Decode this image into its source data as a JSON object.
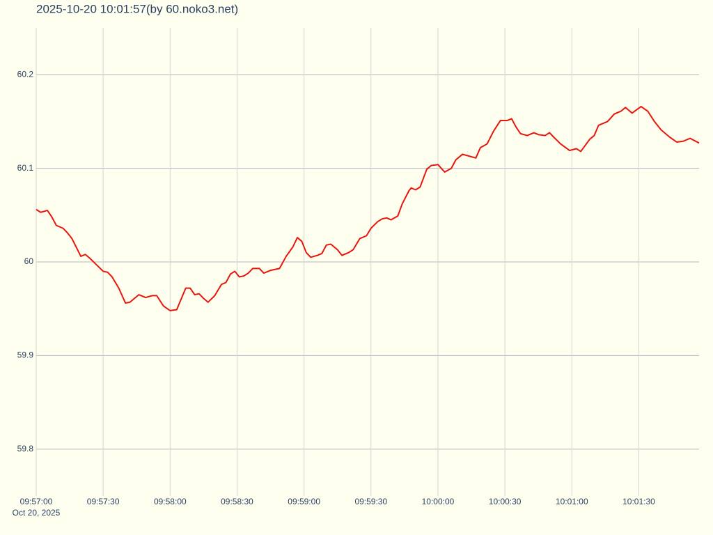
{
  "chart_data": {
    "type": "line",
    "title": "2025-10-20 10:01:57(by 60.noko3.net)",
    "x_date_label": "Oct 20, 2025",
    "color": "#e8150d",
    "grid": true,
    "xlim": [
      "09:57:00",
      "10:01:57"
    ],
    "xticks": [
      "09:57:00",
      "09:57:30",
      "09:58:00",
      "09:58:30",
      "09:59:00",
      "09:59:30",
      "10:00:00",
      "10:00:30",
      "10:01:00",
      "10:01:30"
    ],
    "ylim": [
      59.75,
      60.25
    ],
    "yticks": [
      59.8,
      59.9,
      60,
      60.1,
      60.2
    ],
    "x": [
      "09:57:00",
      "09:57:02",
      "09:57:05",
      "09:57:07",
      "09:57:09",
      "09:57:12",
      "09:57:14",
      "09:57:16",
      "09:57:20",
      "09:57:22",
      "09:57:24",
      "09:57:27",
      "09:57:30",
      "09:57:32",
      "09:57:34",
      "09:57:37",
      "09:57:40",
      "09:57:42",
      "09:57:44",
      "09:57:46",
      "09:57:49",
      "09:57:52",
      "09:57:54",
      "09:57:57",
      "09:58:00",
      "09:58:03",
      "09:58:04",
      "09:58:07",
      "09:58:09",
      "09:58:11",
      "09:58:13",
      "09:58:15",
      "09:58:17",
      "09:58:20",
      "09:58:23",
      "09:58:25",
      "09:58:27",
      "09:58:29",
      "09:58:31",
      "09:58:33",
      "09:58:35",
      "09:58:37",
      "09:58:40",
      "09:58:42",
      "09:58:45",
      "09:58:49",
      "09:58:52",
      "09:58:55",
      "09:58:57",
      "09:58:59",
      "09:59:01",
      "09:59:03",
      "09:59:06",
      "09:59:08",
      "09:59:10",
      "09:59:12",
      "09:59:15",
      "09:59:17",
      "09:59:20",
      "09:59:22",
      "09:59:25",
      "09:59:28",
      "09:59:30",
      "09:59:33",
      "09:59:35",
      "09:59:37",
      "09:59:39",
      "09:59:42",
      "09:59:44",
      "09:59:47",
      "09:59:48",
      "09:59:50",
      "09:59:52",
      "09:59:55",
      "09:59:57",
      "10:00:00",
      "10:00:03",
      "10:00:06",
      "10:00:08",
      "10:00:11",
      "10:00:14",
      "10:00:17",
      "10:00:19",
      "10:00:22",
      "10:00:25",
      "10:00:28",
      "10:00:31",
      "10:00:33",
      "10:00:35",
      "10:00:37",
      "10:00:40",
      "10:00:43",
      "10:00:45",
      "10:00:48",
      "10:00:50",
      "10:00:52",
      "10:00:55",
      "10:00:59",
      "10:01:02",
      "10:01:04",
      "10:01:08",
      "10:01:10",
      "10:01:12",
      "10:01:16",
      "10:01:19",
      "10:01:22",
      "10:01:24",
      "10:01:27",
      "10:01:31",
      "10:01:34",
      "10:01:37",
      "10:01:40",
      "10:01:44",
      "10:01:47",
      "10:01:50",
      "10:01:53",
      "10:01:57"
    ],
    "values": [
      60.056,
      60.053,
      60.055,
      60.048,
      60.039,
      60.036,
      60.031,
      60.025,
      60.006,
      60.008,
      60.004,
      59.997,
      59.99,
      59.989,
      59.984,
      59.972,
      59.956,
      59.957,
      59.961,
      59.965,
      59.962,
      59.964,
      59.964,
      59.953,
      59.948,
      59.949,
      59.955,
      59.972,
      59.972,
      59.965,
      59.966,
      59.961,
      59.957,
      59.964,
      59.976,
      59.978,
      59.987,
      59.99,
      59.984,
      59.985,
      59.988,
      59.993,
      59.993,
      59.988,
      59.991,
      59.993,
      60.006,
      60.016,
      60.026,
      60.022,
      60.01,
      60.005,
      60.007,
      60.009,
      60.018,
      60.019,
      60.013,
      60.007,
      60.01,
      60.013,
      60.025,
      60.028,
      60.036,
      60.043,
      60.046,
      60.047,
      60.045,
      60.049,
      60.062,
      60.076,
      60.079,
      60.077,
      60.08,
      60.099,
      60.103,
      60.104,
      60.096,
      60.1,
      60.109,
      60.115,
      60.113,
      60.111,
      60.122,
      60.126,
      60.14,
      60.151,
      60.151,
      60.153,
      60.144,
      60.137,
      60.135,
      60.138,
      60.136,
      60.135,
      60.138,
      60.133,
      60.126,
      60.119,
      60.121,
      60.118,
      60.131,
      60.135,
      60.146,
      60.15,
      60.158,
      60.161,
      60.165,
      60.159,
      60.166,
      60.161,
      60.15,
      60.141,
      60.133,
      60.128,
      60.129,
      60.132,
      60.127
    ]
  }
}
